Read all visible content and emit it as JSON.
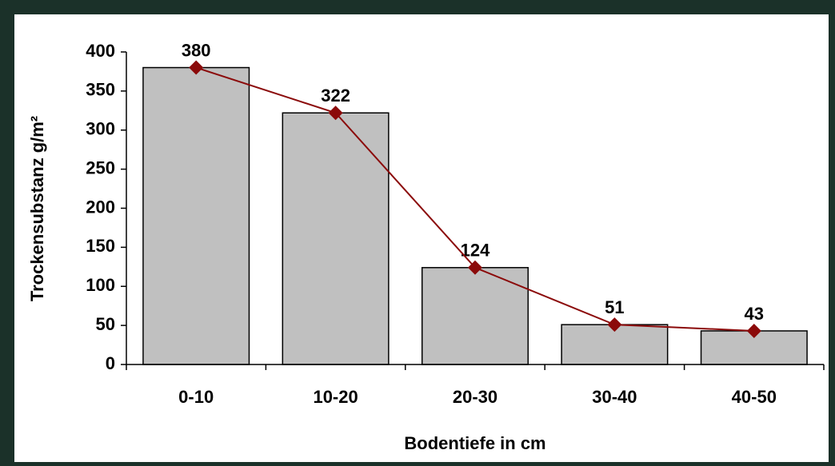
{
  "chart_data": {
    "type": "bar",
    "categories": [
      "0-10",
      "10-20",
      "20-30",
      "30-40",
      "40-50"
    ],
    "series": [
      {
        "type": "bar",
        "color": "#c0c0c0",
        "values": [
          380,
          322,
          124,
          51,
          43
        ]
      },
      {
        "type": "line",
        "color": "#8b0a0a",
        "values": [
          380,
          322,
          124,
          51,
          43
        ]
      }
    ],
    "xlabel": "Bodentiefe in cm",
    "ylabel": "Trockensubstanz g/m²",
    "ylim": [
      0,
      400
    ],
    "yticks": [
      0,
      50,
      100,
      150,
      200,
      250,
      300,
      350,
      400
    ],
    "grid": false
  }
}
